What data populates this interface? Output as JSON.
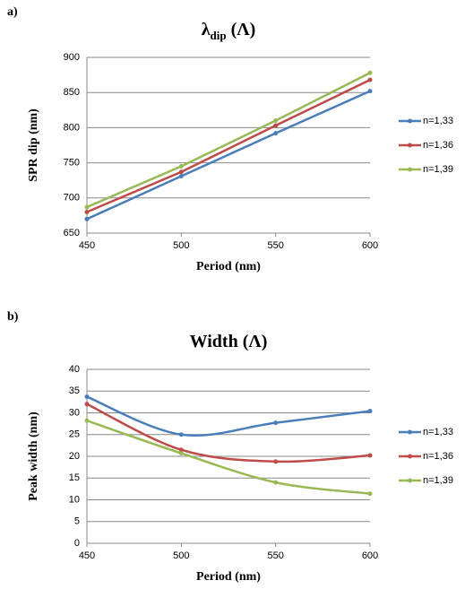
{
  "chart_data": [
    {
      "type": "line",
      "panel_label": "a)",
      "title": {
        "main": "λ",
        "sub": "dip",
        "suffix": " (Λ)"
      },
      "x_label": "Period (nm)",
      "y_label": "SPR dip (nm)",
      "x": [
        450,
        500,
        550,
        600
      ],
      "series": [
        {
          "name": "n=1,33",
          "color": "#4a7ebb",
          "values": [
            670,
            731,
            792,
            852
          ]
        },
        {
          "name": "n=1,36",
          "color": "#be4b48",
          "values": [
            680,
            737,
            803,
            868
          ]
        },
        {
          "name": "n=1,39",
          "color": "#98b954",
          "values": [
            687,
            745,
            810,
            878
          ]
        }
      ],
      "xlim": [
        450,
        600
      ],
      "xticks": [
        450,
        500,
        550,
        600
      ],
      "ylim": [
        650,
        900
      ],
      "yticks": [
        650,
        700,
        750,
        800,
        850,
        900
      ],
      "grid": true,
      "smooth": false,
      "legend": "right"
    },
    {
      "type": "line",
      "panel_label": "b)",
      "title": {
        "main": "Width",
        "suffix": " (Λ)"
      },
      "x_label": "Period (nm)",
      "y_label": "Peak width (nm)",
      "x": [
        450,
        500,
        550,
        600
      ],
      "series": [
        {
          "name": "n=1,33",
          "color": "#4a7ebb",
          "values": [
            33.7,
            25,
            27.7,
            30.4
          ]
        },
        {
          "name": "n=1,36",
          "color": "#be4b48",
          "values": [
            32,
            21.5,
            18.8,
            20.2
          ]
        },
        {
          "name": "n=1,39",
          "color": "#98b954",
          "values": [
            28.2,
            20.7,
            14,
            11.4
          ]
        }
      ],
      "xlim": [
        450,
        600
      ],
      "xticks": [
        450,
        500,
        550,
        600
      ],
      "ylim": [
        0,
        40
      ],
      "yticks": [
        0,
        5,
        10,
        15,
        20,
        25,
        30,
        35,
        40
      ],
      "grid": true,
      "smooth": true,
      "legend": "right"
    }
  ]
}
